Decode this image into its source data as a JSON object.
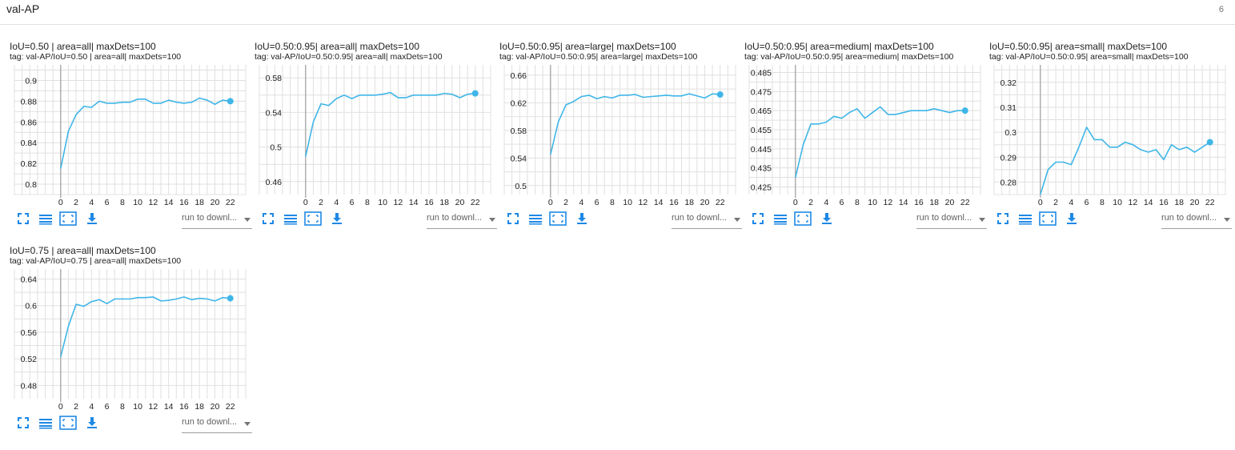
{
  "section": {
    "title": "val-AP",
    "count": "6"
  },
  "toolbar": {
    "run_select_label": "run to downl..."
  },
  "colors": {
    "line": "#3fb6e8",
    "grid": "#e0e0e0",
    "axis": "#9e9e9e"
  },
  "icons": [
    "fullscreen-icon",
    "list-icon",
    "fit-domain-icon",
    "download-icon",
    "chevron-down-icon"
  ],
  "chart_data": [
    {
      "type": "line",
      "title": "IoU=0.50 | area=all| maxDets=100",
      "tag": "tag: val-AP/IoU=0.50 | area=all| maxDets=100",
      "x": [
        0,
        1,
        2,
        3,
        4,
        5,
        6,
        7,
        8,
        9,
        10,
        11,
        12,
        13,
        14,
        15,
        16,
        17,
        18,
        19,
        20,
        21,
        22
      ],
      "series": [
        {
          "values": [
            0.815,
            0.851,
            0.867,
            0.875,
            0.874,
            0.88,
            0.878,
            0.878,
            0.879,
            0.879,
            0.882,
            0.882,
            0.878,
            0.878,
            0.881,
            0.879,
            0.878,
            0.879,
            0.883,
            0.881,
            0.877,
            0.881,
            0.88
          ]
        }
      ],
      "xticks": [
        0,
        2,
        4,
        6,
        8,
        10,
        12,
        14,
        16,
        18,
        20,
        22
      ],
      "yticks": [
        0.8,
        0.82,
        0.84,
        0.86,
        0.88,
        0.9
      ],
      "ytick_labels": [
        "0.8",
        "0.82",
        "0.84",
        "0.86",
        "0.88",
        "0.9"
      ],
      "ylim": [
        0.79,
        0.915
      ],
      "xlim": [
        -6,
        24
      ],
      "grid": true
    },
    {
      "type": "line",
      "title": "IoU=0.50:0.95| area=all| maxDets=100",
      "tag": "tag: val-AP/IoU=0.50:0.95| area=all| maxDets=100",
      "x": [
        0,
        1,
        2,
        3,
        4,
        5,
        6,
        7,
        8,
        9,
        10,
        11,
        12,
        13,
        14,
        15,
        16,
        17,
        18,
        19,
        20,
        21,
        22
      ],
      "series": [
        {
          "values": [
            0.489,
            0.529,
            0.55,
            0.548,
            0.556,
            0.56,
            0.556,
            0.56,
            0.56,
            0.56,
            0.561,
            0.563,
            0.557,
            0.557,
            0.56,
            0.56,
            0.56,
            0.56,
            0.562,
            0.561,
            0.557,
            0.561,
            0.562
          ]
        }
      ],
      "xticks": [
        0,
        2,
        4,
        6,
        8,
        10,
        12,
        14,
        16,
        18,
        20,
        22
      ],
      "yticks": [
        0.46,
        0.5,
        0.54,
        0.58
      ],
      "ytick_labels": [
        "0.46",
        "0.5",
        "0.54",
        "0.58"
      ],
      "ylim": [
        0.445,
        0.595
      ],
      "xlim": [
        -6,
        24
      ],
      "grid": true
    },
    {
      "type": "line",
      "title": "IoU=0.50:0.95| area=large| maxDets=100",
      "tag": "tag: val-AP/IoU=0.50:0.95| area=large| maxDets=100",
      "x": [
        0,
        1,
        2,
        3,
        4,
        5,
        6,
        7,
        8,
        9,
        10,
        11,
        12,
        13,
        14,
        15,
        16,
        17,
        18,
        19,
        20,
        21,
        22
      ],
      "series": [
        {
          "values": [
            0.545,
            0.592,
            0.617,
            0.622,
            0.629,
            0.631,
            0.626,
            0.629,
            0.627,
            0.631,
            0.631,
            0.632,
            0.628,
            0.629,
            0.63,
            0.631,
            0.63,
            0.63,
            0.633,
            0.63,
            0.627,
            0.633,
            0.632
          ]
        }
      ],
      "xticks": [
        0,
        2,
        4,
        6,
        8,
        10,
        12,
        14,
        16,
        18,
        20,
        22
      ],
      "yticks": [
        0.5,
        0.54,
        0.58,
        0.62,
        0.66
      ],
      "ytick_labels": [
        "0.5",
        "0.54",
        "0.58",
        "0.62",
        "0.66"
      ],
      "ylim": [
        0.487,
        0.675
      ],
      "xlim": [
        -6,
        24
      ],
      "grid": true
    },
    {
      "type": "line",
      "title": "IoU=0.50:0.95| area=medium| maxDets=100",
      "tag": "tag: val-AP/IoU=0.50:0.95| area=medium| maxDets=100",
      "x": [
        0,
        1,
        2,
        3,
        4,
        5,
        6,
        7,
        8,
        9,
        10,
        11,
        12,
        13,
        14,
        15,
        16,
        17,
        18,
        19,
        20,
        21,
        22
      ],
      "series": [
        {
          "values": [
            0.43,
            0.447,
            0.458,
            0.458,
            0.459,
            0.462,
            0.461,
            0.464,
            0.466,
            0.461,
            0.464,
            0.467,
            0.463,
            0.463,
            0.464,
            0.465,
            0.465,
            0.465,
            0.466,
            0.465,
            0.464,
            0.465,
            0.465
          ]
        }
      ],
      "xticks": [
        0,
        2,
        4,
        6,
        8,
        10,
        12,
        14,
        16,
        18,
        20,
        22
      ],
      "yticks": [
        0.425,
        0.435,
        0.445,
        0.455,
        0.465,
        0.475,
        0.485
      ],
      "ytick_labels": [
        "0.425",
        "0.435",
        "0.445",
        "0.455",
        "0.465",
        "0.475",
        "0.485"
      ],
      "ylim": [
        0.421,
        0.489
      ],
      "xlim": [
        -6,
        24
      ],
      "grid": true
    },
    {
      "type": "line",
      "title": "IoU=0.50:0.95| area=small| maxDets=100",
      "tag": "tag: val-AP/IoU=0.50:0.95| area=small| maxDets=100",
      "x": [
        0,
        1,
        2,
        3,
        4,
        5,
        6,
        7,
        8,
        9,
        10,
        11,
        12,
        13,
        14,
        15,
        16,
        17,
        18,
        19,
        20,
        21,
        22
      ],
      "series": [
        {
          "values": [
            0.275,
            0.285,
            0.288,
            0.288,
            0.287,
            0.294,
            0.302,
            0.297,
            0.297,
            0.294,
            0.294,
            0.296,
            0.295,
            0.293,
            0.292,
            0.293,
            0.289,
            0.295,
            0.293,
            0.294,
            0.292,
            0.294,
            0.296
          ]
        }
      ],
      "xticks": [
        0,
        2,
        4,
        6,
        8,
        10,
        12,
        14,
        16,
        18,
        20,
        22
      ],
      "yticks": [
        0.28,
        0.29,
        0.3,
        0.31,
        0.32
      ],
      "ytick_labels": [
        "0.28",
        "0.29",
        "0.3",
        "0.31",
        "0.32"
      ],
      "ylim": [
        0.275,
        0.327
      ],
      "xlim": [
        -6,
        24
      ],
      "grid": true
    },
    {
      "type": "line",
      "title": "IoU=0.75 | area=all| maxDets=100",
      "tag": "tag: val-AP/IoU=0.75 | area=all| maxDets=100",
      "x": [
        0,
        1,
        2,
        3,
        4,
        5,
        6,
        7,
        8,
        9,
        10,
        11,
        12,
        13,
        14,
        15,
        16,
        17,
        18,
        19,
        20,
        21,
        22
      ],
      "series": [
        {
          "values": [
            0.523,
            0.569,
            0.602,
            0.599,
            0.606,
            0.609,
            0.603,
            0.61,
            0.61,
            0.61,
            0.612,
            0.612,
            0.613,
            0.607,
            0.608,
            0.61,
            0.613,
            0.609,
            0.611,
            0.61,
            0.607,
            0.612,
            0.611
          ]
        }
      ],
      "xticks": [
        0,
        2,
        4,
        6,
        8,
        10,
        12,
        14,
        16,
        18,
        20,
        22
      ],
      "yticks": [
        0.48,
        0.52,
        0.56,
        0.6,
        0.64
      ],
      "ytick_labels": [
        "0.48",
        "0.52",
        "0.56",
        "0.6",
        "0.64"
      ],
      "ylim": [
        0.46,
        0.655
      ],
      "xlim": [
        -6,
        24
      ],
      "grid": true
    }
  ]
}
